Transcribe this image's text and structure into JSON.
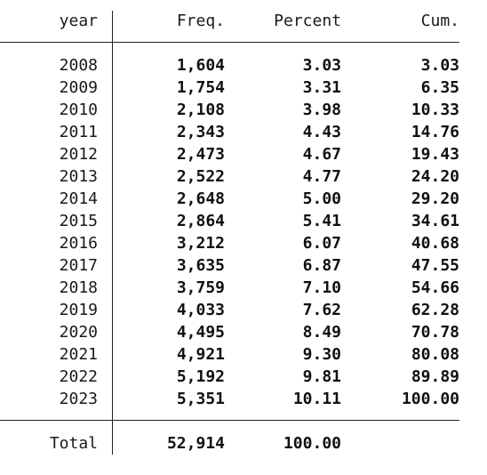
{
  "headers": {
    "year": "year",
    "freq": "Freq.",
    "percent": "Percent",
    "cum": "Cum."
  },
  "rows": [
    {
      "year": "2008",
      "freq": "1,604",
      "percent": "3.03",
      "cum": "3.03"
    },
    {
      "year": "2009",
      "freq": "1,754",
      "percent": "3.31",
      "cum": "6.35"
    },
    {
      "year": "2010",
      "freq": "2,108",
      "percent": "3.98",
      "cum": "10.33"
    },
    {
      "year": "2011",
      "freq": "2,343",
      "percent": "4.43",
      "cum": "14.76"
    },
    {
      "year": "2012",
      "freq": "2,473",
      "percent": "4.67",
      "cum": "19.43"
    },
    {
      "year": "2013",
      "freq": "2,522",
      "percent": "4.77",
      "cum": "24.20"
    },
    {
      "year": "2014",
      "freq": "2,648",
      "percent": "5.00",
      "cum": "29.20"
    },
    {
      "year": "2015",
      "freq": "2,864",
      "percent": "5.41",
      "cum": "34.61"
    },
    {
      "year": "2016",
      "freq": "3,212",
      "percent": "6.07",
      "cum": "40.68"
    },
    {
      "year": "2017",
      "freq": "3,635",
      "percent": "6.87",
      "cum": "47.55"
    },
    {
      "year": "2018",
      "freq": "3,759",
      "percent": "7.10",
      "cum": "54.66"
    },
    {
      "year": "2019",
      "freq": "4,033",
      "percent": "7.62",
      "cum": "62.28"
    },
    {
      "year": "2020",
      "freq": "4,495",
      "percent": "8.49",
      "cum": "70.78"
    },
    {
      "year": "2021",
      "freq": "4,921",
      "percent": "9.30",
      "cum": "80.08"
    },
    {
      "year": "2022",
      "freq": "5,192",
      "percent": "9.81",
      "cum": "89.89"
    },
    {
      "year": "2023",
      "freq": "5,351",
      "percent": "10.11",
      "cum": "100.00"
    }
  ],
  "total": {
    "label": "Total",
    "freq": "52,914",
    "percent": "100.00"
  }
}
